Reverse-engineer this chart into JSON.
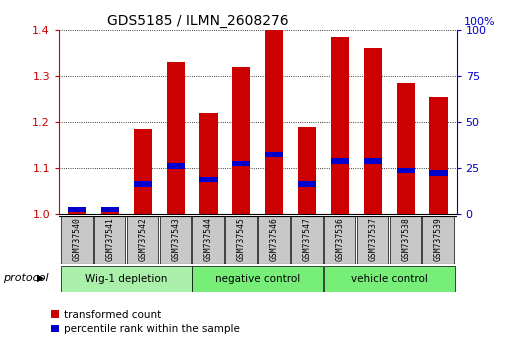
{
  "title": "GDS5185 / ILMN_2608276",
  "samples": [
    "GSM737540",
    "GSM737541",
    "GSM737542",
    "GSM737543",
    "GSM737544",
    "GSM737545",
    "GSM737546",
    "GSM737547",
    "GSM737536",
    "GSM737537",
    "GSM737538",
    "GSM737539"
  ],
  "red_values": [
    1.01,
    1.01,
    1.185,
    1.33,
    1.22,
    1.32,
    1.4,
    1.19,
    1.385,
    1.36,
    1.285,
    1.255
  ],
  "blue_values": [
    0.01,
    0.01,
    0.065,
    0.105,
    0.075,
    0.11,
    0.13,
    0.065,
    0.115,
    0.115,
    0.095,
    0.09
  ],
  "groups": [
    {
      "label": "Wig-1 depletion",
      "start": 0,
      "end": 4,
      "color": "#aaf0aa"
    },
    {
      "label": "negative control",
      "start": 4,
      "end": 8,
      "color": "#77ee77"
    },
    {
      "label": "vehicle control",
      "start": 8,
      "end": 12,
      "color": "#77ee77"
    }
  ],
  "ylim": [
    1.0,
    1.4
  ],
  "y2lim": [
    0,
    100
  ],
  "yticks_left": [
    1.0,
    1.1,
    1.2,
    1.3,
    1.4
  ],
  "yticks_right": [
    0,
    25,
    50,
    75,
    100
  ],
  "red_color": "#cc0000",
  "blue_color": "#0000cc",
  "bar_width": 0.55,
  "protocol_label": "protocol",
  "legend_red": "transformed count",
  "legend_blue": "percentile rank within the sample",
  "label_bg": "#c8c8c8",
  "title_fontsize": 10
}
